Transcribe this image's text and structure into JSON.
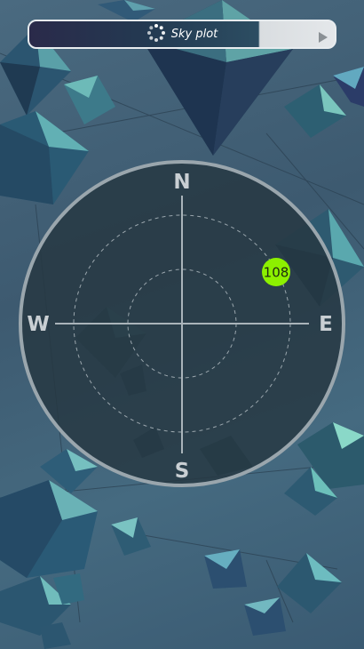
{
  "toolbar": {
    "title": "Sky plot",
    "icon": "loading-spinner-icon",
    "play_icon": "play-triangle-icon"
  },
  "skyplot": {
    "north": "N",
    "south": "S",
    "east": "E",
    "west": "W",
    "satellites": [
      {
        "id": "108",
        "color": "#8cf000"
      }
    ]
  },
  "colors": {
    "dial_fill": "#263741",
    "dial_ring": "#9aa6ad",
    "satellite": "#8cf000"
  }
}
